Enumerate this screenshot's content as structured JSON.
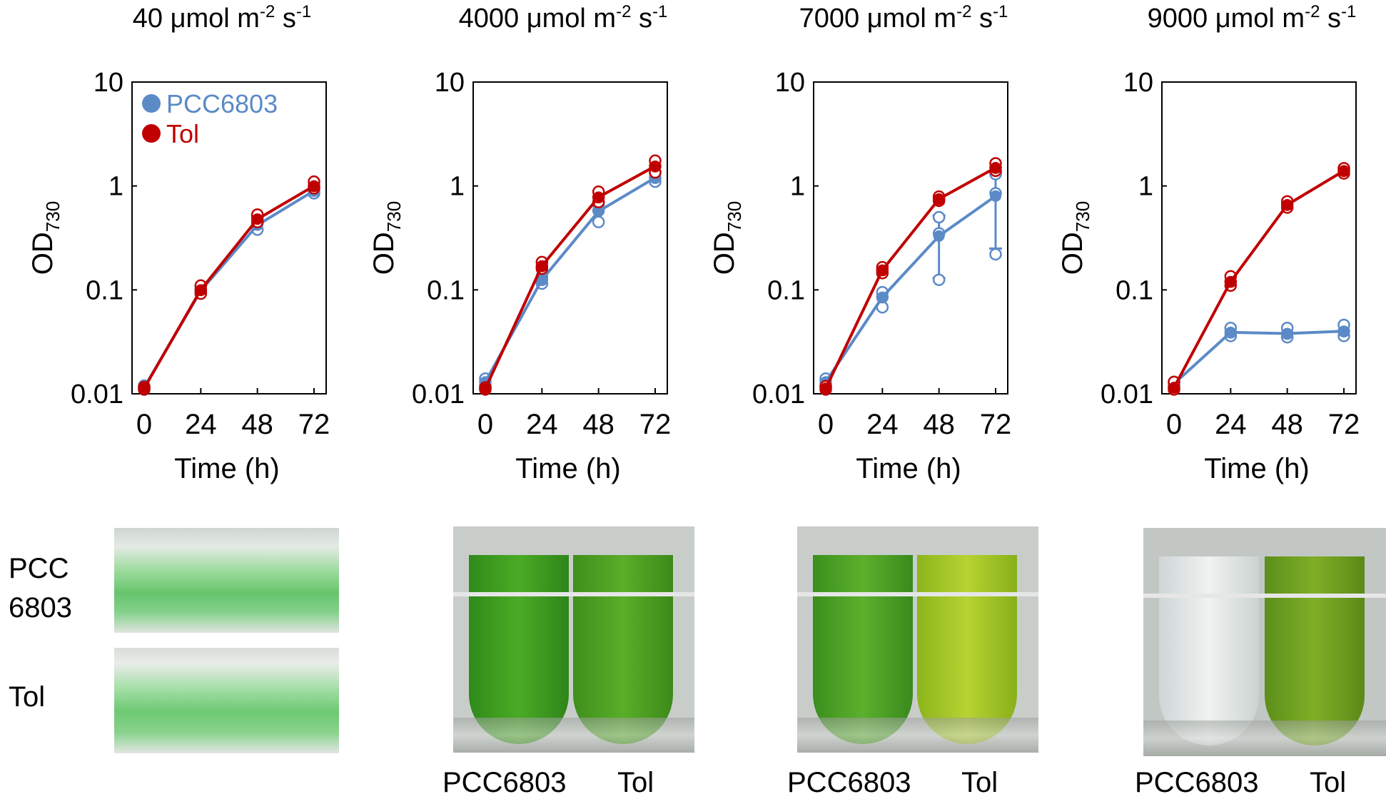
{
  "figure": {
    "panels": [
      {
        "title_value": "40",
        "title_unit_pre": " μmol m",
        "title_sup1": "-2",
        "title_mid": " s",
        "title_sup2": "-1"
      },
      {
        "title_value": "4000",
        "title_unit_pre": " μmol m",
        "title_sup1": "-2",
        "title_mid": " s",
        "title_sup2": "-1"
      },
      {
        "title_value": "7000",
        "title_unit_pre": " μmol m",
        "title_sup1": "-2",
        "title_mid": " s",
        "title_sup2": "-1"
      },
      {
        "title_value": "9000",
        "title_unit_pre": " μmol m",
        "title_sup1": "-2",
        "title_mid": " s",
        "title_sup2": "-1"
      }
    ],
    "photo_labels": {
      "panel1_row1_line1": "PCC",
      "panel1_row1_line2": "6803",
      "panel1_row2": "Tol",
      "tube_left": "PCC6803",
      "tube_right": "Tol"
    },
    "colors": {
      "PCC6803": "#5b8ac7",
      "Tol": "#c00000"
    }
  },
  "chart_data": [
    {
      "type": "line",
      "yscale": "log",
      "ylim": [
        0.01,
        10
      ],
      "xlim": [
        0,
        72
      ],
      "xticks": [
        0,
        24,
        48,
        72
      ],
      "yticks": [
        "0.01",
        "0.1",
        "1",
        "10"
      ],
      "xlabel": "Time (h)",
      "ylabel_main": "OD",
      "ylabel_sub": "730",
      "legend": {
        "show": true,
        "position": "top-left"
      },
      "series": [
        {
          "name": "PCC6803",
          "x": [
            0,
            24,
            48,
            72
          ],
          "y": [
            0.0115,
            0.098,
            0.42,
            0.9
          ],
          "replicates": [
            [
              0.011,
              0.012,
              0.0115
            ],
            [
              0.095,
              0.1,
              0.108
            ],
            [
              0.38,
              0.44,
              0.48
            ],
            [
              0.85,
              0.9,
              0.95
            ]
          ],
          "err": [
            null,
            null,
            null,
            null
          ]
        },
        {
          "name": "Tol",
          "x": [
            0,
            24,
            48,
            72
          ],
          "y": [
            0.0113,
            0.1,
            0.48,
            1.0
          ],
          "replicates": [
            [
              0.011,
              0.0113,
              0.0116
            ],
            [
              0.092,
              0.1,
              0.11
            ],
            [
              0.45,
              0.5,
              0.53
            ],
            [
              0.95,
              1.0,
              1.1
            ]
          ],
          "err": [
            null,
            null,
            null,
            null
          ]
        }
      ]
    },
    {
      "type": "line",
      "yscale": "log",
      "ylim": [
        0.01,
        10
      ],
      "xlim": [
        0,
        72
      ],
      "xticks": [
        0,
        24,
        48,
        72
      ],
      "yticks": [
        "0.01",
        "0.1",
        "1",
        "10"
      ],
      "xlabel": "Time (h)",
      "ylabel_main": "OD",
      "ylabel_sub": "730",
      "legend": {
        "show": false,
        "position": "none"
      },
      "series": [
        {
          "name": "PCC6803",
          "x": [
            0,
            24,
            48,
            72
          ],
          "y": [
            0.013,
            0.125,
            0.57,
            1.2
          ],
          "replicates": [
            [
              0.012,
              0.013,
              0.014
            ],
            [
              0.115,
              0.125,
              0.135
            ],
            [
              0.45,
              0.58,
              0.66
            ],
            [
              1.1,
              1.2,
              1.35
            ]
          ],
          "err": [
            null,
            null,
            null,
            null
          ]
        },
        {
          "name": "Tol",
          "x": [
            0,
            24,
            48,
            72
          ],
          "y": [
            0.0112,
            0.17,
            0.78,
            1.55
          ],
          "replicates": [
            [
              0.011,
              0.0112,
              0.0115
            ],
            [
              0.16,
              0.17,
              0.185
            ],
            [
              0.7,
              0.78,
              0.88
            ],
            [
              1.35,
              1.55,
              1.75
            ]
          ],
          "err": [
            null,
            null,
            null,
            null
          ]
        }
      ]
    },
    {
      "type": "line",
      "yscale": "log",
      "ylim": [
        0.01,
        10
      ],
      "xlim": [
        0,
        72
      ],
      "xticks": [
        0,
        24,
        48,
        72
      ],
      "yticks": [
        "0.01",
        "0.1",
        "1",
        "10"
      ],
      "xlabel": "Time (h)",
      "ylabel_main": "OD",
      "ylabel_sub": "730",
      "legend": {
        "show": false,
        "position": "none"
      },
      "series": [
        {
          "name": "PCC6803",
          "x": [
            0,
            24,
            48,
            72
          ],
          "y": [
            0.013,
            0.085,
            0.33,
            0.8
          ],
          "replicates": [
            [
              0.012,
              0.013,
              0.014
            ],
            [
              0.068,
              0.085,
              0.095
            ],
            [
              0.125,
              0.35,
              0.5
            ],
            [
              0.22,
              0.85,
              1.3
            ]
          ],
          "err": [
            null,
            null,
            [
              0.13,
              0.52
            ],
            [
              0.25,
              1.35
            ]
          ]
        },
        {
          "name": "Tol",
          "x": [
            0,
            24,
            48,
            72
          ],
          "y": [
            0.0113,
            0.155,
            0.75,
            1.5
          ],
          "replicates": [
            [
              0.011,
              0.0113,
              0.0118
            ],
            [
              0.145,
              0.155,
              0.165
            ],
            [
              0.72,
              0.75,
              0.79
            ],
            [
              1.4,
              1.5,
              1.65
            ]
          ],
          "err": [
            null,
            null,
            null,
            null
          ]
        }
      ]
    },
    {
      "type": "line",
      "yscale": "log",
      "ylim": [
        0.01,
        10
      ],
      "xlim": [
        0,
        72
      ],
      "xticks": [
        0,
        24,
        48,
        72
      ],
      "yticks": [
        "0.01",
        "0.1",
        "1",
        "10"
      ],
      "xlabel": "Time (h)",
      "ylabel_main": "OD",
      "ylabel_sub": "730",
      "legend": {
        "show": false,
        "position": "none"
      },
      "series": [
        {
          "name": "PCC6803",
          "x": [
            0,
            24,
            48,
            72
          ],
          "y": [
            0.0125,
            0.039,
            0.038,
            0.04
          ],
          "replicates": [
            [
              0.012,
              0.0125,
              0.013
            ],
            [
              0.036,
              0.039,
              0.043
            ],
            [
              0.035,
              0.038,
              0.043
            ],
            [
              0.036,
              0.04,
              0.046
            ]
          ],
          "err": [
            null,
            null,
            null,
            null
          ]
        },
        {
          "name": "Tol",
          "x": [
            0,
            24,
            48,
            72
          ],
          "y": [
            0.0115,
            0.12,
            0.66,
            1.4
          ],
          "replicates": [
            [
              0.011,
              0.0115,
              0.013
            ],
            [
              0.11,
              0.12,
              0.135
            ],
            [
              0.62,
              0.66,
              0.71
            ],
            [
              1.32,
              1.4,
              1.48
            ]
          ],
          "err": [
            null,
            null,
            null,
            null
          ]
        }
      ]
    }
  ]
}
